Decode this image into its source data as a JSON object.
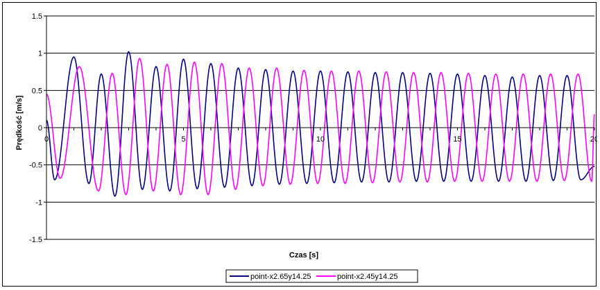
{
  "chart_data": {
    "type": "line",
    "title": "",
    "xlabel": "Czas [s]",
    "ylabel": "Prędkość [m/s]",
    "xlim": [
      0,
      20
    ],
    "ylim": [
      -1.5,
      1.5
    ],
    "x_ticks": [
      0,
      5,
      10,
      15,
      20
    ],
    "y_ticks": [
      -1.5,
      -1,
      -0.5,
      0,
      0.5,
      1,
      1.5
    ],
    "y_tick_labels": [
      "-1.5",
      "-1",
      "-0.5",
      "0",
      "0.5",
      "1",
      "1.5"
    ],
    "grid": "horizontal",
    "legend_position": "bottom",
    "series": [
      {
        "name": "point-x2.65y14.25",
        "color": "#000080",
        "x": [
          0,
          0.3,
          1.0,
          1.55,
          2.0,
          2.5,
          3.0,
          3.5,
          4.0,
          4.5,
          5.0,
          5.5,
          6.0,
          6.5,
          7.0,
          7.5,
          8.0,
          8.5,
          9.0,
          9.5,
          10.0,
          10.5,
          11.0,
          11.5,
          12.0,
          12.5,
          13.0,
          13.5,
          14.0,
          14.5,
          15.0,
          15.5,
          16.0,
          16.5,
          17.0,
          17.5,
          18.0,
          18.5,
          19.0,
          19.5,
          20.0
        ],
        "y": [
          0.1,
          -0.7,
          0.95,
          -0.75,
          0.72,
          -0.92,
          1.02,
          -0.83,
          0.82,
          -0.85,
          0.92,
          -0.82,
          0.86,
          -0.8,
          0.8,
          -0.78,
          0.78,
          -0.76,
          0.76,
          -0.75,
          0.76,
          -0.74,
          0.75,
          -0.73,
          0.74,
          -0.73,
          0.74,
          -0.72,
          0.73,
          -0.72,
          0.72,
          -0.72,
          0.7,
          -0.72,
          0.68,
          -0.72,
          0.7,
          -0.71,
          0.7,
          -0.7,
          -0.52
        ]
      },
      {
        "name": "point-x2.45y14.25",
        "color": "#FF00FF",
        "x": [
          0,
          0.5,
          1.2,
          1.9,
          2.4,
          2.9,
          3.4,
          3.9,
          4.4,
          4.9,
          5.4,
          5.9,
          6.4,
          6.9,
          7.4,
          7.9,
          8.4,
          8.9,
          9.4,
          9.9,
          10.4,
          10.9,
          11.4,
          11.9,
          12.4,
          12.9,
          13.4,
          13.9,
          14.4,
          14.9,
          15.4,
          15.9,
          16.4,
          16.9,
          17.4,
          17.9,
          18.4,
          18.9,
          19.4,
          19.9,
          20.0
        ],
        "y": [
          0.45,
          -0.68,
          0.82,
          -0.85,
          0.73,
          -0.9,
          0.93,
          -0.85,
          0.85,
          -0.9,
          0.88,
          -0.9,
          0.86,
          -0.83,
          0.8,
          -0.78,
          0.8,
          -0.76,
          0.77,
          -0.75,
          0.76,
          -0.75,
          0.76,
          -0.74,
          0.75,
          -0.73,
          0.74,
          -0.73,
          0.74,
          -0.72,
          0.73,
          -0.72,
          0.72,
          -0.72,
          0.72,
          -0.72,
          0.72,
          -0.71,
          0.72,
          -0.72,
          0.18
        ]
      }
    ]
  }
}
